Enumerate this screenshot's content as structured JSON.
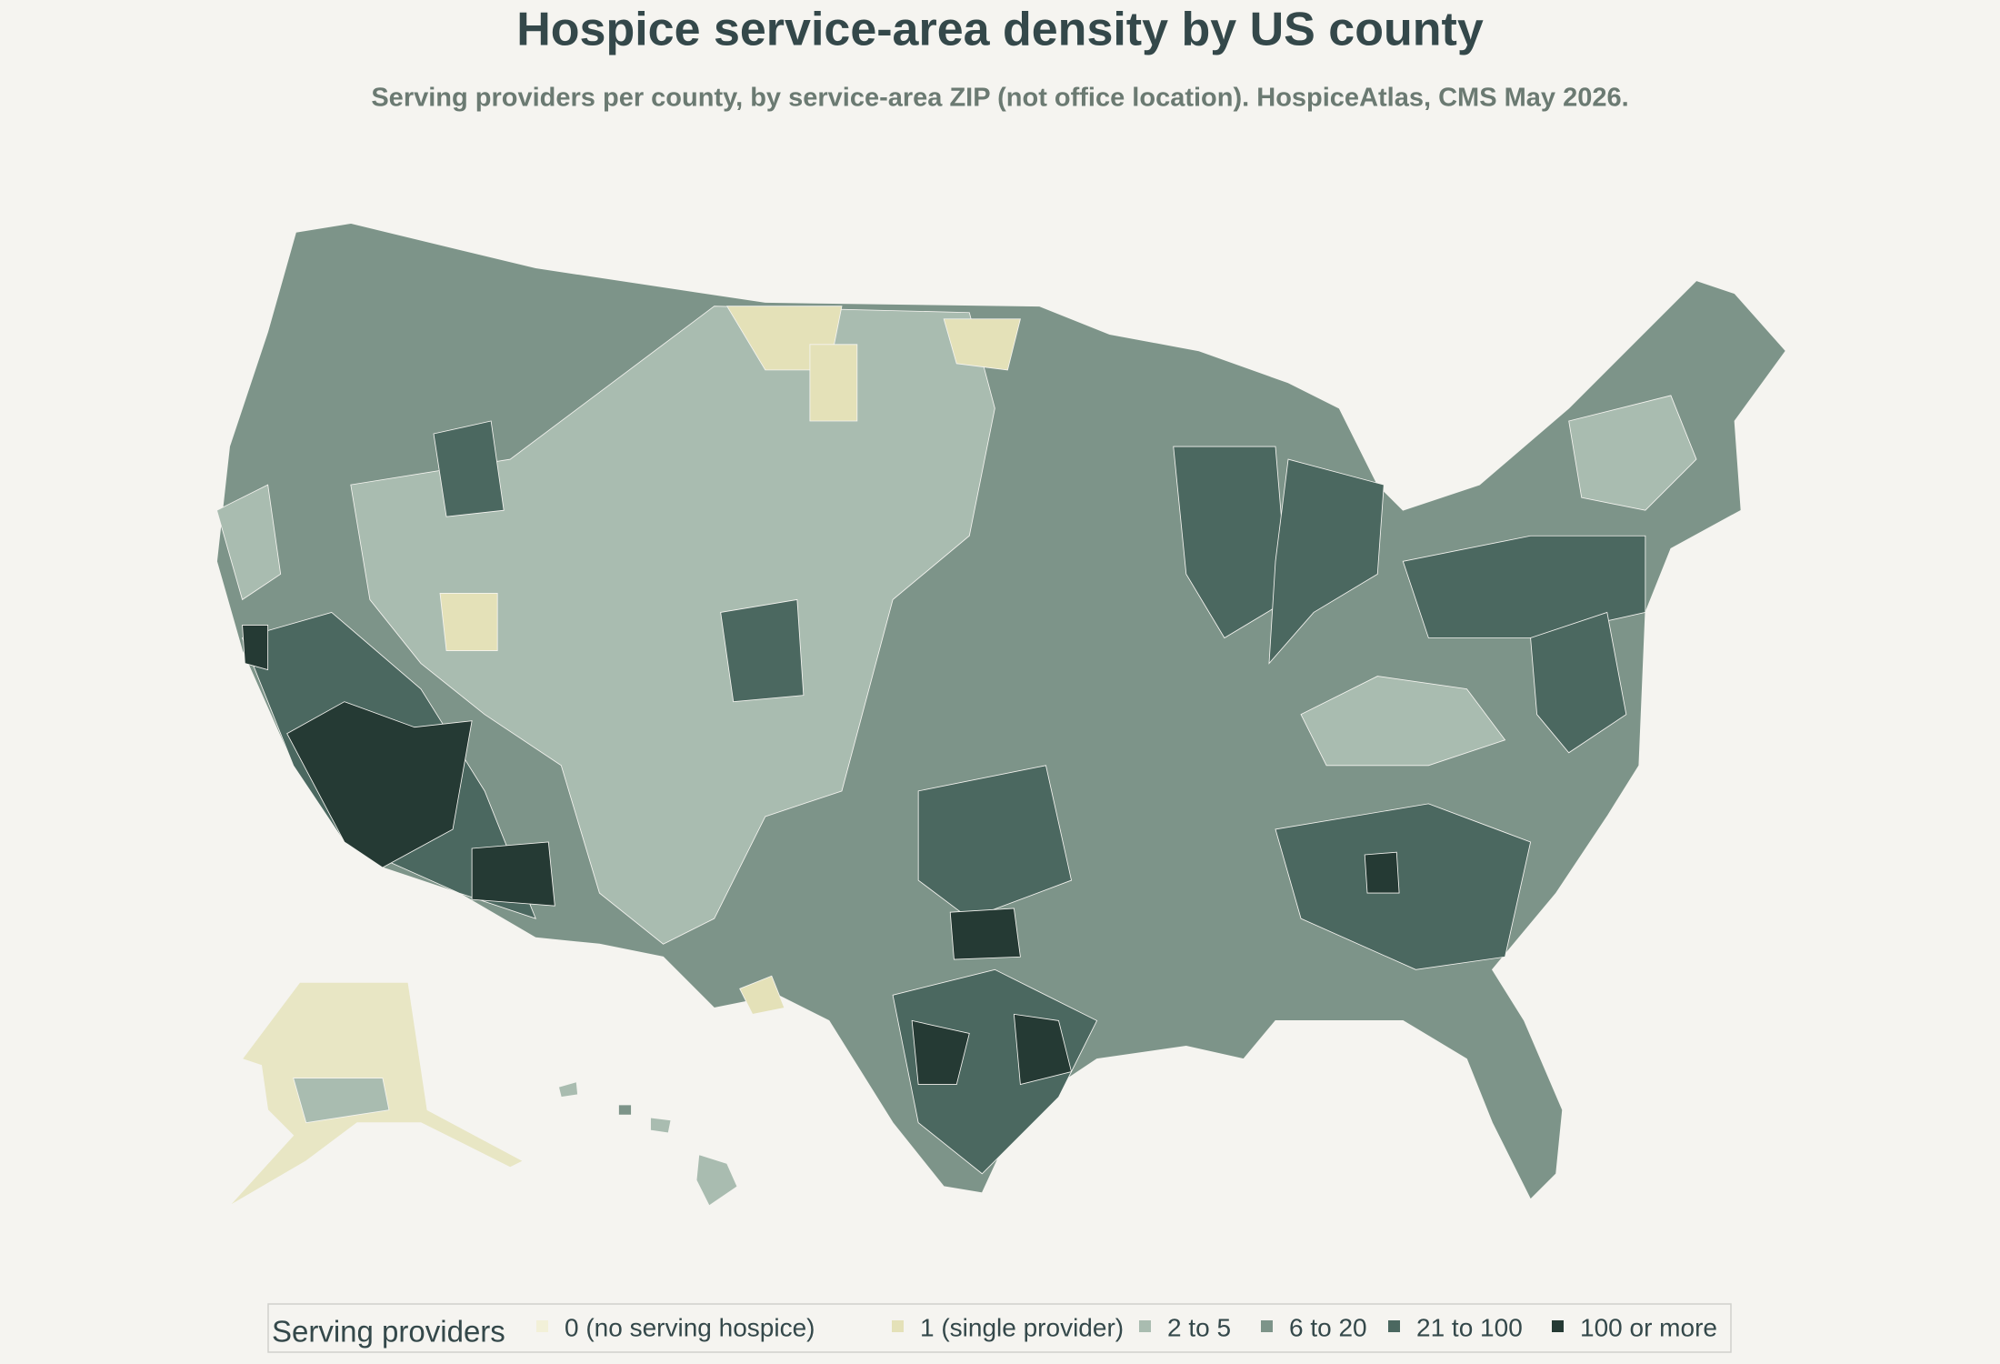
{
  "header": {
    "title": "Hospice service-area density by US county",
    "subtitle": "Serving providers per county, by service-area ZIP (not office location). HospiceAtlas, CMS May 2026."
  },
  "legend": {
    "title": "Serving providers",
    "items": [
      {
        "label": "0  (no serving hospice)",
        "color": "#f2f0d8"
      },
      {
        "label": "1  (single provider)",
        "color": "#e4e1b8"
      },
      {
        "label": "2 to 5",
        "color": "#a9bcb0"
      },
      {
        "label": "6 to 20",
        "color": "#7d9489"
      },
      {
        "label": "21 to 100",
        "color": "#4b6860"
      },
      {
        "label": "100 or more",
        "color": "#253a34"
      }
    ]
  }
}
